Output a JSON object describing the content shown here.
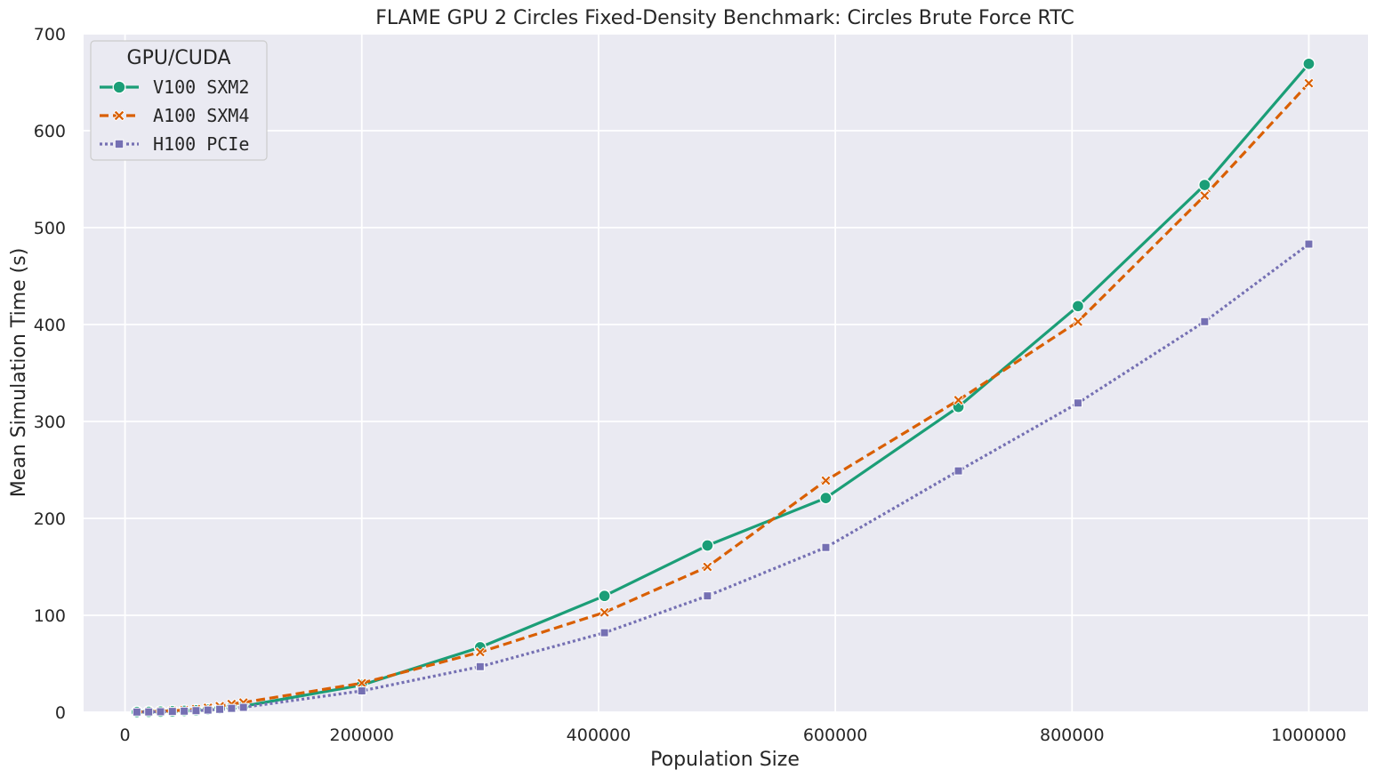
{
  "chart_data": {
    "type": "line",
    "title": "FLAME GPU 2 Circles Fixed-Density Benchmark: Circles Brute Force RTC",
    "xlabel": "Population Size",
    "ylabel": "Mean Simulation Time (s)",
    "xlim": [
      -35000,
      1050000
    ],
    "ylim": [
      0,
      700
    ],
    "xticks": [
      0,
      200000,
      400000,
      600000,
      800000,
      1000000
    ],
    "xtick_labels": [
      "0",
      "200000",
      "400000",
      "600000",
      "800000",
      "1000000"
    ],
    "yticks": [
      0,
      100,
      200,
      300,
      400,
      500,
      600,
      700
    ],
    "ytick_labels": [
      "0",
      "100",
      "200",
      "300",
      "400",
      "500",
      "600",
      "700"
    ],
    "grid": true,
    "background": "#eaeaf2",
    "legend": {
      "title": "GPU/CUDA",
      "placement": "top-left"
    },
    "series": [
      {
        "name": "V100 SXM2",
        "color": "#1b9e77",
        "dash": "solid",
        "marker": "circle",
        "x": [
          10000,
          20000,
          30000,
          40000,
          50000,
          60000,
          70000,
          80000,
          90000,
          100000,
          200000,
          300000,
          405000,
          492000,
          592000,
          704000,
          805000,
          912000,
          1000000
        ],
        "y": [
          0.2,
          0.4,
          0.6,
          0.9,
          1.4,
          2.0,
          2.8,
          3.8,
          5.0,
          6.2,
          28,
          67,
          120,
          172,
          221,
          315,
          419,
          544,
          669
        ]
      },
      {
        "name": "A100 SXM4",
        "color": "#d95f02",
        "dash": "dashed",
        "marker": "x",
        "x": [
          10000,
          20000,
          30000,
          40000,
          50000,
          60000,
          70000,
          80000,
          90000,
          100000,
          200000,
          300000,
          405000,
          492000,
          592000,
          704000,
          805000,
          912000,
          1000000
        ],
        "y": [
          0.3,
          0.6,
          1.0,
          1.5,
          2.2,
          3.2,
          4.6,
          6.2,
          8.5,
          10,
          30,
          62,
          103,
          150,
          239,
          322,
          403,
          533,
          649
        ]
      },
      {
        "name": "H100 PCIe",
        "color": "#7570b3",
        "dash": "dotted",
        "marker": "square",
        "x": [
          10000,
          20000,
          30000,
          40000,
          50000,
          60000,
          70000,
          80000,
          90000,
          100000,
          200000,
          300000,
          405000,
          492000,
          592000,
          704000,
          805000,
          912000,
          1000000
        ],
        "y": [
          0.2,
          0.3,
          0.5,
          0.8,
          1.1,
          1.6,
          2.2,
          3.0,
          4.0,
          5.0,
          22,
          47,
          82,
          120,
          170,
          249,
          319,
          403,
          483
        ]
      }
    ]
  }
}
